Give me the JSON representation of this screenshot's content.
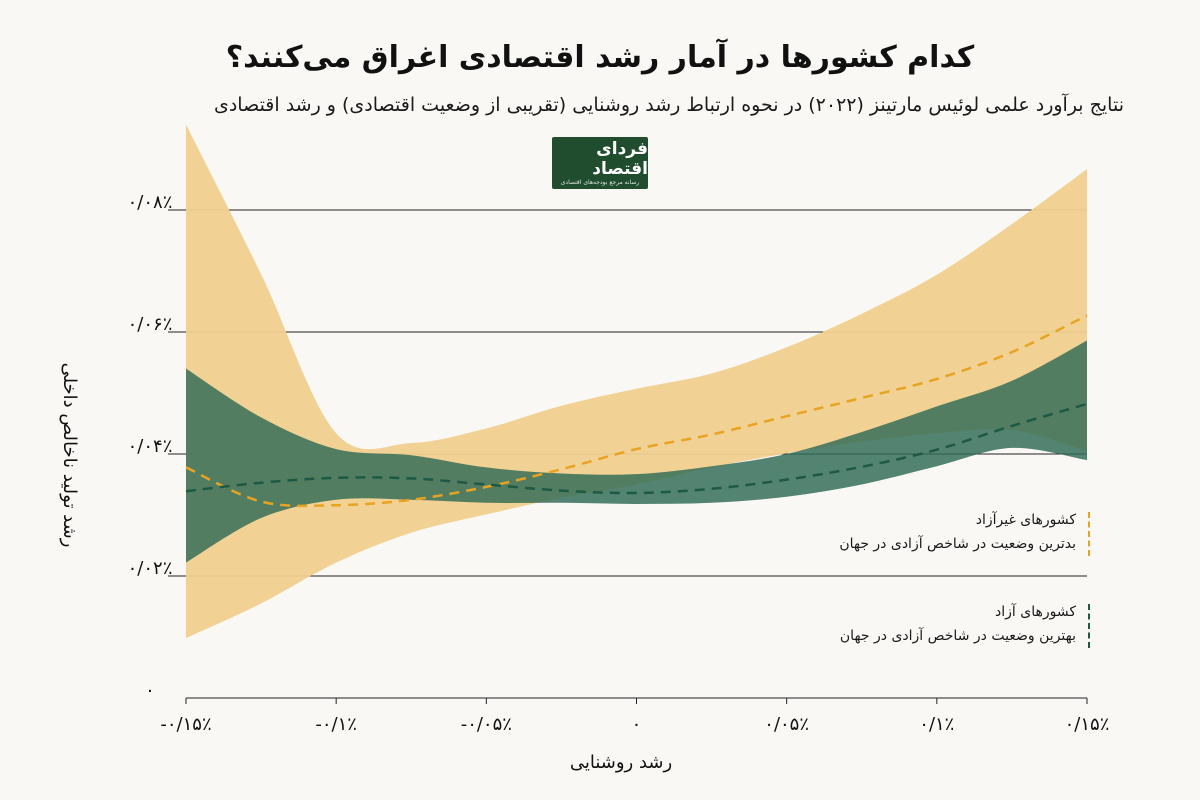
{
  "header": {
    "title": "کدام کشورها در آمار رشد اقتصادی اغراق می‌کنند؟",
    "subtitle": "نتایج برآورد علمی لوئیس مارتینز (۲۰۲۲) در نحوه ارتباط رشد روشنایی (تقریبی از وضعیت اقتصادی) و رشد اقتصادی"
  },
  "logo": {
    "text": "فردای اقتصاد",
    "subtext": "رسانه مرجع بودجه‌های اقتصادی"
  },
  "legend": {
    "not_free": {
      "line1": "کشورهای غیرآزاد",
      "line2": "بدترین وضعیت در شاخص آزادی در جهان"
    },
    "free": {
      "line1": "کشورهای آزاد",
      "line2": "بهترین وضعیت در شاخص آزادی در جهان"
    }
  },
  "colors": {
    "not_free_band": "#f0d08e",
    "not_free_line": "#e8a322",
    "free_band": "#2e6a55",
    "free_line": "#1d5a45",
    "grid": "#222222",
    "background": "#faf8f4"
  },
  "chart_data": {
    "type": "line",
    "title": "کدام کشورها در آمار رشد اقتصادی اغراق می‌کنند؟",
    "xlabel": "رشد روشنایی",
    "ylabel": "رشد تولید ناخالص داخلی",
    "xlim": [
      -0.15,
      0.15
    ],
    "ylim": [
      0,
      0.08
    ],
    "x_ticks": [
      -0.15,
      -0.1,
      -0.05,
      0,
      0.05,
      0.1,
      0.15
    ],
    "x_tick_labels": [
      "-۰/۱۵٪",
      "-۰/۱٪",
      "-۰/۰۵٪",
      "۰",
      "۰/۰۵٪",
      "۰/۱٪",
      "۰/۱۵٪"
    ],
    "y_ticks": [
      0,
      0.02,
      0.04,
      0.06,
      0.08
    ],
    "y_tick_labels": [
      "۰",
      "۰/۰۲٪",
      "۰/۰۴٪",
      "۰/۰۶٪",
      "۰/۰۸٪"
    ],
    "x": [
      -0.15,
      -0.125,
      -0.1,
      -0.075,
      -0.05,
      -0.025,
      0,
      0.025,
      0.05,
      0.075,
      0.1,
      0.125,
      0.15
    ],
    "series": [
      {
        "name": "کشورهای غیرآزاد",
        "values": [
          0.0378,
          0.0322,
          0.0316,
          0.0325,
          0.0346,
          0.0375,
          0.0408,
          0.0432,
          0.0462,
          0.0492,
          0.0523,
          0.0567,
          0.0627
        ],
        "lower": [
          0.0098,
          0.0155,
          0.0222,
          0.0271,
          0.0301,
          0.0328,
          0.035,
          0.0378,
          0.0401,
          0.042,
          0.0434,
          0.0439,
          0.0405
        ],
        "upper": [
          0.094,
          0.0695,
          0.0434,
          0.0418,
          0.0442,
          0.0479,
          0.0507,
          0.0532,
          0.0575,
          0.063,
          0.0694,
          0.0777,
          0.0867
        ]
      },
      {
        "name": "کشورهای آزاد",
        "values": [
          0.0339,
          0.0353,
          0.0361,
          0.036,
          0.035,
          0.034,
          0.0336,
          0.0343,
          0.0358,
          0.0379,
          0.0407,
          0.0446,
          0.0482
        ],
        "lower": [
          0.0222,
          0.0295,
          0.0325,
          0.0325,
          0.032,
          0.032,
          0.0318,
          0.032,
          0.033,
          0.035,
          0.038,
          0.041,
          0.039
        ],
        "upper": [
          0.054,
          0.046,
          0.0408,
          0.0398,
          0.0378,
          0.0368,
          0.0367,
          0.038,
          0.04,
          0.0436,
          0.0478,
          0.052,
          0.0586
        ]
      }
    ]
  }
}
